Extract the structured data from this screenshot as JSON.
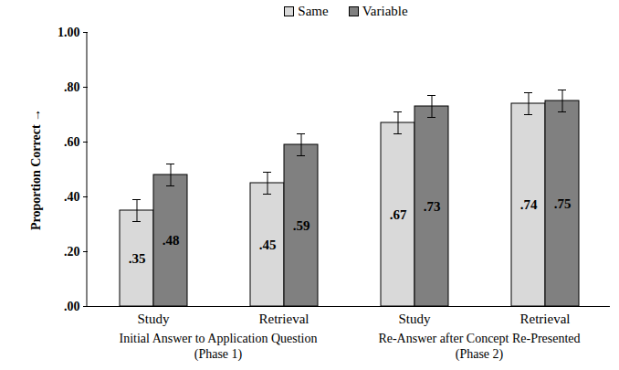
{
  "chart_data": {
    "type": "bar",
    "y_label": "Proportion Correct",
    "categories": [
      "Study",
      "Retrieval",
      "Study",
      "Retrieval"
    ],
    "category_groups": [
      {
        "lines": [
          "Initial Answer to Application Question",
          "(Phase 1)"
        ],
        "size": 2
      },
      {
        "lines": [
          "Re-Answer after Concept Re-Presented",
          "(Phase 2)"
        ],
        "size": 2
      }
    ],
    "series": [
      {
        "name": "Same",
        "color": "#d9d9d9",
        "values": [
          0.35,
          0.45,
          0.67,
          0.74
        ],
        "value_labels": [
          ".35",
          ".45",
          ".67",
          ".74"
        ],
        "errors": [
          0.04,
          0.04,
          0.04,
          0.04
        ]
      },
      {
        "name": "Variable",
        "color": "#808080",
        "values": [
          0.48,
          0.59,
          0.73,
          0.75
        ],
        "value_labels": [
          ".48",
          ".59",
          ".73",
          ".75"
        ],
        "errors": [
          0.04,
          0.04,
          0.04,
          0.04
        ]
      }
    ],
    "ylim": [
      0,
      1
    ],
    "yticks": [
      {
        "value": 0,
        "label": ".00"
      },
      {
        "value": 0.2,
        "label": ".20"
      },
      {
        "value": 0.4,
        "label": ".40"
      },
      {
        "value": 0.6,
        "label": ".60"
      },
      {
        "value": 0.8,
        "label": ".80"
      },
      {
        "value": 1,
        "label": "1.00"
      }
    ],
    "grid": false,
    "legend": "top",
    "data_labels": true
  }
}
